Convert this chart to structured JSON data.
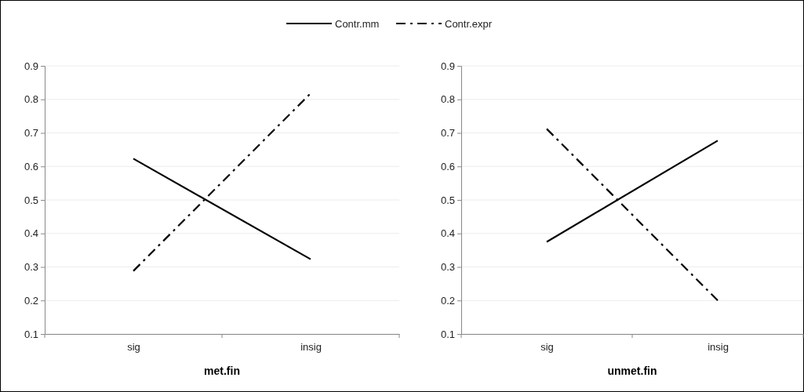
{
  "chart_data": [
    {
      "type": "line",
      "xlabel": "met.fin",
      "categories": [
        "sig",
        "insig"
      ],
      "ylim": [
        0.1,
        0.9
      ],
      "yticks": [
        0.1,
        0.2,
        0.3,
        0.4,
        0.5,
        0.6,
        0.7,
        0.8,
        0.9
      ],
      "grid": "y",
      "legend": "top",
      "series": [
        {
          "name": "Contr.mm",
          "color": "#000000",
          "line_style": "solid",
          "values": [
            0.623,
            0.323
          ]
        },
        {
          "name": "Contr.expr",
          "color": "#000000",
          "line_style": "dashed",
          "values": [
            0.288,
            0.818
          ]
        }
      ]
    },
    {
      "type": "line",
      "xlabel": "unmet.fin",
      "categories": [
        "sig",
        "insig"
      ],
      "ylim": [
        0.1,
        0.9
      ],
      "yticks": [
        0.1,
        0.2,
        0.3,
        0.4,
        0.5,
        0.6,
        0.7,
        0.8,
        0.9
      ],
      "grid": "y",
      "series": [
        {
          "name": "Contr.mm",
          "color": "#000000",
          "line_style": "solid",
          "values": [
            0.375,
            0.677
          ]
        },
        {
          "name": "Contr.expr",
          "color": "#000000",
          "line_style": "dashed",
          "values": [
            0.712,
            0.2
          ]
        }
      ]
    }
  ]
}
